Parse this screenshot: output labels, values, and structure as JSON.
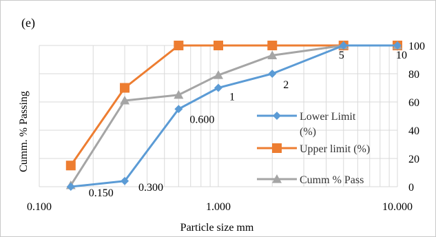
{
  "chart_data": {
    "type": "line",
    "panel_label": "(e)",
    "xlabel": "Particle size mm",
    "ylabel": "Cumm. % Passing",
    "x_scale": "log",
    "xlim": [
      0.1,
      10
    ],
    "ylim": [
      0,
      100
    ],
    "x_ticks": [
      "0.100",
      "1.000",
      "10.000"
    ],
    "y_ticks": [
      "0",
      "20",
      "40",
      "60",
      "80",
      "100"
    ],
    "grid": "horizontal",
    "legend_position": "right",
    "series": [
      {
        "name": "Lower Limit (%)",
        "color": "#5b9bd5",
        "marker": "diamond",
        "x": [
          0.15,
          0.3,
          0.6,
          1,
          2,
          5,
          10
        ],
        "y": [
          0,
          4,
          55,
          70,
          80,
          100,
          100
        ]
      },
      {
        "name": "Upper limit (%)",
        "color": "#ed7d31",
        "marker": "square",
        "x": [
          0.15,
          0.3,
          0.6,
          1,
          2,
          5,
          10
        ],
        "y": [
          15,
          70,
          100,
          100,
          100,
          100,
          100
        ]
      },
      {
        "name": "Cumm % Pass",
        "color": "#a5a5a5",
        "marker": "triangle",
        "x": [
          0.15,
          0.3,
          0.6,
          1,
          2,
          5,
          10
        ],
        "y": [
          1,
          61,
          65,
          79,
          93,
          100,
          100
        ]
      }
    ],
    "annotations": [
      {
        "text": "0.150",
        "x": 0.15,
        "y": 0
      },
      {
        "text": "0.300",
        "x": 0.3,
        "y": 4
      },
      {
        "text": "0.600",
        "x": 0.6,
        "y": 55
      },
      {
        "text": "1",
        "x": 1,
        "y": 70
      },
      {
        "text": "2",
        "x": 2,
        "y": 80
      },
      {
        "text": "5",
        "x": 5,
        "y": 100
      },
      {
        "text": "10",
        "x": 10,
        "y": 100
      }
    ]
  }
}
